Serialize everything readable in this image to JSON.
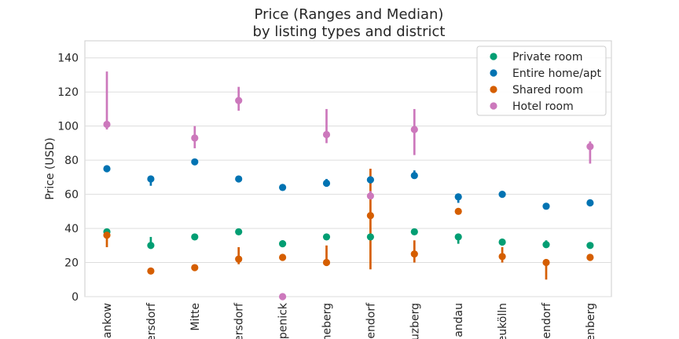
{
  "chart_data": {
    "type": "scatter",
    "title_line1": "Price (Ranges and Median)",
    "title_line2": "by listing types and district",
    "xlabel": "",
    "ylabel": "Price (USD)",
    "ylim": [
      0,
      150
    ],
    "yticks": [
      0,
      20,
      40,
      60,
      80,
      100,
      120,
      140
    ],
    "grid": true,
    "legend_position": "top-right",
    "categories": [
      "ankow",
      "ersdorf",
      "Mitte",
      "ersdorf",
      "penick",
      "neberg",
      "endorf",
      "uzberg",
      "andau",
      "eukölln",
      "endorf",
      "enberg"
    ],
    "series": [
      {
        "name": "Private room",
        "color": "#029e73",
        "points": [
          {
            "x": 0,
            "median": 38,
            "low": 36,
            "high": 39
          },
          {
            "x": 1,
            "median": 30,
            "low": 28,
            "high": 35
          },
          {
            "x": 2,
            "median": 35,
            "low": 34,
            "high": 36
          },
          {
            "x": 3,
            "median": 38,
            "low": 37,
            "high": 39
          },
          {
            "x": 4,
            "median": 31,
            "low": 29,
            "high": 33
          },
          {
            "x": 5,
            "median": 35,
            "low": 34,
            "high": 36
          },
          {
            "x": 6,
            "median": 35,
            "low": 33,
            "high": 37
          },
          {
            "x": 7,
            "median": 38,
            "low": 37,
            "high": 39
          },
          {
            "x": 8,
            "median": 35,
            "low": 31,
            "high": 37
          },
          {
            "x": 9,
            "median": 32,
            "low": 31,
            "high": 33
          },
          {
            "x": 10,
            "median": 30.5,
            "low": 29,
            "high": 33
          },
          {
            "x": 11,
            "median": 30,
            "low": 29,
            "high": 31
          }
        ]
      },
      {
        "name": "Entire home/apt",
        "color": "#0173b2",
        "points": [
          {
            "x": 0,
            "median": 75,
            "low": 73,
            "high": 76
          },
          {
            "x": 1,
            "median": 69,
            "low": 65,
            "high": 71
          },
          {
            "x": 2,
            "median": 79,
            "low": 78,
            "high": 80
          },
          {
            "x": 3,
            "median": 69,
            "low": 68,
            "high": 70
          },
          {
            "x": 4,
            "median": 64,
            "low": 63,
            "high": 65
          },
          {
            "x": 5,
            "median": 66.5,
            "low": 65,
            "high": 69
          },
          {
            "x": 6,
            "median": 68.5,
            "low": 66,
            "high": 70
          },
          {
            "x": 7,
            "median": 71,
            "low": 69,
            "high": 74
          },
          {
            "x": 8,
            "median": 58.5,
            "low": 55,
            "high": 60
          },
          {
            "x": 9,
            "median": 60,
            "low": 59,
            "high": 61
          },
          {
            "x": 10,
            "median": 53,
            "low": 52,
            "high": 55
          },
          {
            "x": 11,
            "median": 55,
            "low": 54,
            "high": 56
          }
        ]
      },
      {
        "name": "Shared room",
        "color": "#d55e00",
        "points": [
          {
            "x": 0,
            "median": 36,
            "low": 29,
            "high": 39
          },
          {
            "x": 1,
            "median": 15,
            "low": 14,
            "high": 16
          },
          {
            "x": 2,
            "median": 17,
            "low": 16,
            "high": 18
          },
          {
            "x": 3,
            "median": 22,
            "low": 19,
            "high": 29
          },
          {
            "x": 4,
            "median": 23,
            "low": 22,
            "high": 25
          },
          {
            "x": 5,
            "median": 20,
            "low": 18,
            "high": 30
          },
          {
            "x": 6,
            "median": 47.5,
            "low": 16,
            "high": 75
          },
          {
            "x": 7,
            "median": 25,
            "low": 20,
            "high": 33
          },
          {
            "x": 8,
            "median": 50,
            "low": 49,
            "high": 51
          },
          {
            "x": 9,
            "median": 23.5,
            "low": 20,
            "high": 29
          },
          {
            "x": 10,
            "median": 20,
            "low": 10,
            "high": 22
          },
          {
            "x": 11,
            "median": 23,
            "low": 22,
            "high": 25
          }
        ]
      },
      {
        "name": "Hotel room",
        "color": "#cc78bc",
        "points": [
          {
            "x": 0,
            "median": 101,
            "low": 98,
            "high": 132
          },
          {
            "x": 2,
            "median": 93,
            "low": 87,
            "high": 100
          },
          {
            "x": 3,
            "median": 115,
            "low": 109,
            "high": 123
          },
          {
            "x": 4,
            "median": 0,
            "low": 0,
            "high": 0
          },
          {
            "x": 5,
            "median": 95,
            "low": 90,
            "high": 110
          },
          {
            "x": 6,
            "median": 59,
            "low": 57,
            "high": 62
          },
          {
            "x": 7,
            "median": 98,
            "low": 83,
            "high": 110
          },
          {
            "x": 11,
            "median": 88,
            "low": 78,
            "high": 91
          }
        ]
      }
    ]
  }
}
